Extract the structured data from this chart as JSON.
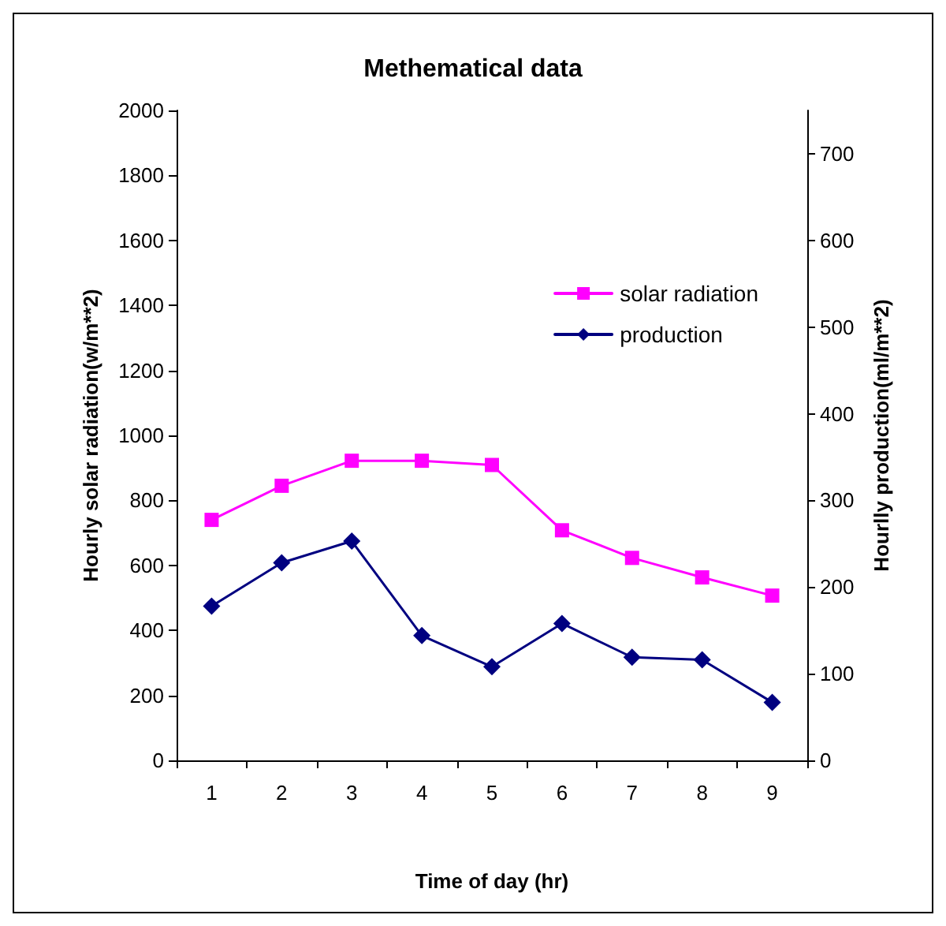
{
  "chart_data": {
    "type": "line",
    "title": "Methematical data",
    "xlabel": "Time of day (hr)",
    "ylabel": "Hourly solar radiation(w/m**2)",
    "y2label": "Hourlly production(ml/m**2)",
    "categories": [
      "1",
      "2",
      "3",
      "4",
      "5",
      "6",
      "7",
      "8",
      "9"
    ],
    "series": [
      {
        "name": "solar radiation",
        "color": "#ff00ff",
        "marker": "square",
        "values": [
          740,
          845,
          922,
          922,
          909,
          708,
          623,
          563,
          507
        ]
      },
      {
        "name": "production",
        "color": "#000080",
        "marker": "diamond",
        "axis": "y2",
        "values": [
          178,
          228,
          253,
          144,
          108,
          158,
          119,
          116,
          67
        ]
      }
    ],
    "ylim": [
      0,
      2000
    ],
    "yticks": [
      0,
      200,
      400,
      600,
      800,
      1000,
      1200,
      1400,
      1600,
      1800,
      2000
    ],
    "y2lim": [
      0,
      750
    ],
    "y2ticks": [
      0,
      100,
      200,
      300,
      400,
      500,
      600,
      700
    ],
    "grid": false,
    "legend": "top right",
    "line_style": "solid"
  }
}
